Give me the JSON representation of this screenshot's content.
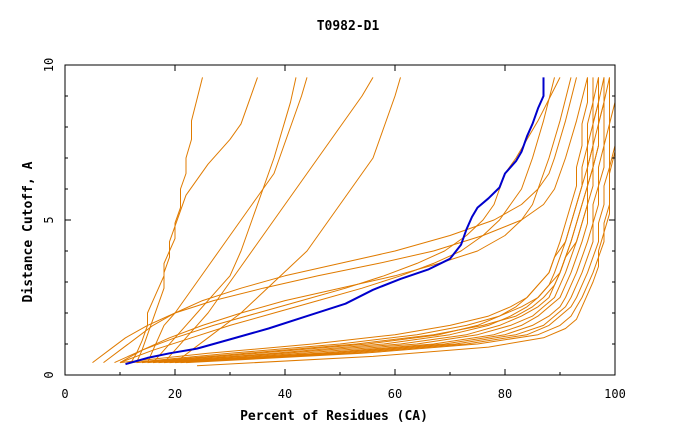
{
  "chart_data": {
    "type": "line",
    "title": "T0982-D1",
    "xlabel": "Percent of Residues (CA)",
    "ylabel": "Distance Cutoff, A",
    "xlim": [
      0,
      100
    ],
    "ylim": [
      0,
      10
    ],
    "xticks": [
      "0",
      "20",
      "40",
      "60",
      "80",
      "100"
    ],
    "yticks": [
      "0",
      "5",
      "10"
    ],
    "grid": false,
    "legend": "none",
    "colors": {
      "highlight": "#0000cc",
      "others": "#e07b00",
      "axes": "#000000"
    },
    "highlight_series": {
      "x": [
        11,
        15,
        19,
        24,
        30,
        37,
        44,
        51,
        56,
        61,
        66,
        70,
        72,
        73,
        74,
        75,
        77,
        79,
        80,
        82,
        83,
        84,
        85,
        86,
        87,
        87
      ],
      "y": [
        0.35,
        0.55,
        0.7,
        0.85,
        1.15,
        1.5,
        1.9,
        2.3,
        2.75,
        3.1,
        3.4,
        3.75,
        4.2,
        4.7,
        5.1,
        5.4,
        5.7,
        6.05,
        6.5,
        6.9,
        7.2,
        7.7,
        8.1,
        8.6,
        9.0,
        9.6
      ]
    },
    "series": [
      {
        "x": [
          12,
          13,
          14,
          15,
          15,
          16,
          17,
          18,
          18,
          19,
          20,
          20,
          21,
          21,
          22,
          22,
          23,
          23,
          24,
          25
        ],
        "y": [
          0.4,
          0.7,
          1.1,
          1.6,
          2.0,
          2.4,
          2.8,
          3.2,
          3.6,
          4.0,
          4.4,
          4.9,
          5.4,
          6.0,
          6.5,
          7.0,
          7.6,
          8.2,
          8.9,
          9.6
        ]
      },
      {
        "x": [
          13,
          14,
          15,
          16,
          17,
          18,
          18,
          19,
          19,
          20,
          21,
          22,
          24,
          26,
          28,
          30,
          32,
          33,
          34,
          35
        ],
        "y": [
          0.4,
          0.8,
          1.3,
          1.8,
          2.3,
          2.8,
          3.3,
          3.8,
          4.3,
          4.8,
          5.3,
          5.8,
          6.3,
          6.8,
          7.2,
          7.6,
          8.1,
          8.6,
          9.1,
          9.6
        ]
      },
      {
        "x": [
          15,
          16,
          17,
          18,
          20,
          22,
          24,
          26,
          28,
          30,
          32,
          34,
          36,
          38,
          39,
          40,
          41,
          42,
          43,
          44
        ],
        "y": [
          0.4,
          0.8,
          1.2,
          1.6,
          2.0,
          2.5,
          3.0,
          3.5,
          4.0,
          4.5,
          5.0,
          5.5,
          6.0,
          6.5,
          7.0,
          7.5,
          8.0,
          8.5,
          9.0,
          9.6
        ]
      },
      {
        "x": [
          16,
          18,
          20,
          22,
          24,
          26,
          28,
          30,
          31,
          32,
          33,
          34,
          35,
          36,
          37,
          38,
          39,
          40,
          41,
          42
        ],
        "y": [
          0.4,
          0.8,
          1.2,
          1.6,
          2.0,
          2.4,
          2.8,
          3.2,
          3.6,
          4.0,
          4.5,
          5.0,
          5.5,
          6.0,
          6.5,
          7.0,
          7.6,
          8.2,
          8.8,
          9.6
        ]
      },
      {
        "x": [
          18,
          20,
          22,
          24,
          26,
          28,
          30,
          32,
          34,
          36,
          38,
          40,
          42,
          44,
          46,
          48,
          50,
          52,
          54,
          56
        ],
        "y": [
          0.4,
          0.8,
          1.2,
          1.6,
          2.0,
          2.5,
          3.0,
          3.5,
          4.0,
          4.5,
          5.0,
          5.5,
          6.0,
          6.5,
          7.0,
          7.5,
          8.0,
          8.5,
          9.0,
          9.6
        ]
      },
      {
        "x": [
          20,
          23,
          26,
          29,
          32,
          35,
          38,
          41,
          44,
          46,
          48,
          50,
          52,
          54,
          56,
          57,
          58,
          59,
          60,
          61
        ],
        "y": [
          0.4,
          0.8,
          1.2,
          1.6,
          2.0,
          2.5,
          3.0,
          3.5,
          4.0,
          4.5,
          5.0,
          5.5,
          6.0,
          6.5,
          7.0,
          7.5,
          8.0,
          8.5,
          9.0,
          9.6
        ]
      },
      {
        "x": [
          9,
          14,
          20,
          27,
          35,
          43,
          51,
          58,
          64,
          69,
          73,
          76,
          78,
          79,
          80,
          82,
          84,
          86,
          88,
          90
        ],
        "y": [
          0.4,
          0.8,
          1.2,
          1.6,
          2.0,
          2.4,
          2.8,
          3.2,
          3.6,
          4.0,
          4.5,
          5.0,
          5.5,
          6.0,
          6.5,
          7.0,
          7.6,
          8.2,
          8.9,
          9.6
        ]
      },
      {
        "x": [
          10,
          16,
          23,
          30,
          38,
          46,
          54,
          61,
          67,
          72,
          76,
          79,
          81,
          83,
          84,
          85,
          86,
          87,
          88,
          89
        ],
        "y": [
          0.4,
          0.8,
          1.2,
          1.6,
          2.0,
          2.4,
          2.8,
          3.2,
          3.6,
          4.0,
          4.5,
          5.0,
          5.5,
          6.0,
          6.5,
          7.0,
          7.6,
          8.2,
          8.9,
          9.6
        ]
      },
      {
        "x": [
          10,
          14,
          19,
          25,
          32,
          40,
          50,
          60,
          68,
          75,
          80,
          83,
          85,
          86,
          87,
          88,
          89,
          90,
          91,
          92
        ],
        "y": [
          0.4,
          0.8,
          1.2,
          1.6,
          2.0,
          2.4,
          2.8,
          3.2,
          3.6,
          4.0,
          4.5,
          5.0,
          5.5,
          6.0,
          6.5,
          7.0,
          7.6,
          8.2,
          8.9,
          9.6
        ]
      },
      {
        "x": [
          7,
          10,
          13,
          16,
          20,
          25,
          32,
          40,
          50,
          60,
          70,
          78,
          83,
          86,
          88,
          89,
          90,
          91,
          92,
          93
        ],
        "y": [
          0.4,
          0.8,
          1.2,
          1.6,
          2.0,
          2.4,
          2.8,
          3.2,
          3.6,
          4.0,
          4.5,
          5.0,
          5.5,
          6.0,
          6.5,
          7.0,
          7.6,
          8.2,
          8.9,
          9.6
        ]
      },
      {
        "x": [
          5,
          8,
          11,
          15,
          20,
          27,
          36,
          46,
          57,
          67,
          76,
          83,
          87,
          89,
          90,
          91,
          92,
          93,
          94,
          95
        ],
        "y": [
          0.4,
          0.8,
          1.2,
          1.6,
          2.0,
          2.4,
          2.8,
          3.2,
          3.6,
          4.0,
          4.5,
          5.0,
          5.5,
          6.0,
          6.5,
          7.0,
          7.6,
          8.2,
          8.9,
          9.6
        ]
      },
      {
        "x": [
          14,
          35,
          55,
          68,
          75,
          79,
          82,
          84,
          86,
          88,
          89,
          90,
          91,
          92,
          93,
          93,
          94,
          94,
          95,
          95
        ],
        "y": [
          0.4,
          0.7,
          1.0,
          1.3,
          1.6,
          1.9,
          2.2,
          2.5,
          2.9,
          3.3,
          3.8,
          4.3,
          4.9,
          5.5,
          6.1,
          6.7,
          7.4,
          8.1,
          8.8,
          9.6
        ]
      },
      {
        "x": [
          15,
          38,
          58,
          70,
          77,
          81,
          84,
          86,
          88,
          89,
          90,
          91,
          92,
          93,
          94,
          94,
          95,
          95,
          96,
          96
        ],
        "y": [
          0.4,
          0.7,
          1.0,
          1.3,
          1.6,
          1.9,
          2.2,
          2.5,
          2.9,
          3.3,
          3.8,
          4.3,
          4.9,
          5.5,
          6.1,
          6.7,
          7.4,
          8.1,
          8.8,
          9.6
        ]
      },
      {
        "x": [
          16,
          40,
          61,
          73,
          79,
          83,
          86,
          88,
          89,
          90,
          91,
          92,
          93,
          94,
          95,
          95,
          96,
          96,
          97,
          97
        ],
        "y": [
          0.4,
          0.7,
          1.0,
          1.3,
          1.6,
          1.9,
          2.2,
          2.5,
          2.9,
          3.3,
          3.8,
          4.3,
          4.9,
          5.5,
          6.1,
          6.7,
          7.4,
          8.1,
          8.8,
          9.6
        ]
      },
      {
        "x": [
          17,
          43,
          64,
          75,
          81,
          85,
          87,
          89,
          90,
          91,
          92,
          93,
          94,
          95,
          95,
          96,
          96,
          97,
          97,
          98
        ],
        "y": [
          0.4,
          0.7,
          1.0,
          1.3,
          1.6,
          1.9,
          2.2,
          2.5,
          2.9,
          3.3,
          3.8,
          4.3,
          4.9,
          5.5,
          6.1,
          6.7,
          7.4,
          8.1,
          8.8,
          9.6
        ]
      },
      {
        "x": [
          18,
          46,
          67,
          78,
          83,
          86,
          88,
          90,
          91,
          92,
          93,
          94,
          95,
          95,
          96,
          96,
          97,
          97,
          98,
          98
        ],
        "y": [
          0.4,
          0.7,
          1.0,
          1.3,
          1.6,
          1.9,
          2.2,
          2.5,
          2.9,
          3.3,
          3.8,
          4.3,
          4.9,
          5.5,
          6.1,
          6.7,
          7.4,
          8.1,
          8.8,
          9.6
        ]
      },
      {
        "x": [
          19,
          48,
          69,
          80,
          85,
          88,
          90,
          91,
          92,
          93,
          94,
          95,
          96,
          96,
          97,
          97,
          98,
          98,
          98,
          99
        ],
        "y": [
          0.4,
          0.7,
          1.0,
          1.3,
          1.6,
          1.9,
          2.2,
          2.5,
          2.9,
          3.3,
          3.8,
          4.3,
          4.9,
          5.5,
          6.1,
          6.7,
          7.4,
          8.1,
          8.8,
          9.6
        ]
      },
      {
        "x": [
          20,
          50,
          71,
          82,
          87,
          89,
          91,
          92,
          93,
          94,
          95,
          96,
          96,
          97,
          97,
          98,
          98,
          99,
          99,
          99
        ],
        "y": [
          0.4,
          0.7,
          1.0,
          1.3,
          1.6,
          1.9,
          2.2,
          2.5,
          2.9,
          3.3,
          3.8,
          4.3,
          4.9,
          5.5,
          6.1,
          6.7,
          7.4,
          8.1,
          8.8,
          9.6
        ]
      },
      {
        "x": [
          21,
          52,
          73,
          84,
          88,
          90,
          92,
          93,
          94,
          95,
          96,
          97,
          97,
          98,
          98,
          99,
          99,
          99,
          100,
          100
        ],
        "y": [
          0.4,
          0.7,
          1.0,
          1.3,
          1.6,
          1.9,
          2.2,
          2.5,
          2.9,
          3.3,
          3.8,
          4.3,
          4.9,
          5.5,
          6.1,
          6.7,
          7.4,
          8.1,
          8.8,
          9.6
        ]
      },
      {
        "x": [
          22,
          54,
          75,
          86,
          90,
          92,
          93,
          94,
          95,
          96,
          97,
          98,
          98,
          99,
          99,
          99,
          100,
          100,
          100,
          100
        ],
        "y": [
          0.4,
          0.7,
          1.0,
          1.3,
          1.6,
          1.9,
          2.2,
          2.5,
          2.9,
          3.3,
          3.8,
          4.3,
          4.9,
          5.5,
          6.1,
          6.7,
          7.4,
          8.1,
          8.8,
          9.6
        ]
      },
      {
        "x": [
          24,
          56,
          77,
          87,
          91,
          93,
          94,
          95,
          96,
          97,
          97,
          98,
          99,
          99,
          99,
          100,
          100,
          100,
          100,
          100
        ],
        "y": [
          0.3,
          0.6,
          0.9,
          1.2,
          1.5,
          1.8,
          2.2,
          2.6,
          3.0,
          3.5,
          4.0,
          4.6,
          5.2,
          5.8,
          6.5,
          7.2,
          7.9,
          8.6,
          9.2,
          9.6
        ]
      },
      {
        "x": [
          12,
          30,
          50,
          64,
          73,
          79,
          83,
          86,
          88,
          90,
          91,
          92,
          93,
          94,
          95,
          95,
          96,
          96,
          97,
          97
        ],
        "y": [
          0.4,
          0.7,
          1.0,
          1.3,
          1.6,
          1.9,
          2.2,
          2.5,
          2.9,
          3.3,
          3.8,
          4.3,
          4.9,
          5.5,
          6.1,
          6.7,
          7.4,
          8.1,
          8.8,
          9.6
        ]
      },
      {
        "x": [
          13,
          33,
          53,
          67,
          76,
          82,
          85,
          87,
          89,
          90,
          91,
          93,
          94,
          95,
          95,
          96,
          97,
          97,
          98,
          98
        ],
        "y": [
          0.4,
          0.7,
          1.0,
          1.3,
          1.6,
          1.9,
          2.2,
          2.5,
          2.9,
          3.3,
          3.8,
          4.3,
          4.9,
          5.5,
          6.1,
          6.7,
          7.4,
          8.1,
          8.8,
          9.6
        ]
      },
      {
        "x": [
          10,
          26,
          45,
          60,
          70,
          77,
          81,
          84,
          86,
          88,
          89,
          91,
          92,
          93,
          94,
          95,
          95,
          96,
          96,
          97
        ],
        "y": [
          0.4,
          0.7,
          1.0,
          1.3,
          1.6,
          1.9,
          2.2,
          2.5,
          2.9,
          3.3,
          3.8,
          4.3,
          4.9,
          5.5,
          6.1,
          6.7,
          7.4,
          8.1,
          8.8,
          9.6
        ]
      }
    ]
  }
}
